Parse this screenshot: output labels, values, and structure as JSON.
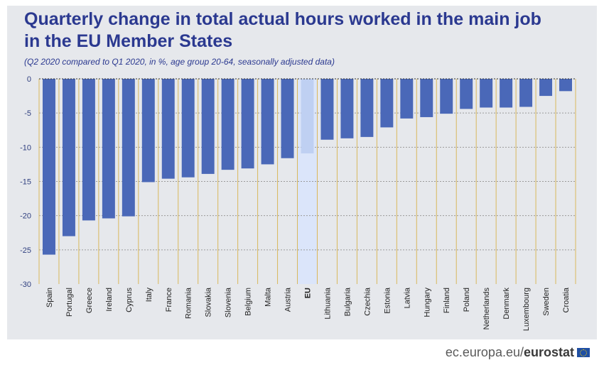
{
  "header": {
    "title_line1": "Quarterly change in total actual hours worked in the main job",
    "title_line2": "in the EU Member States",
    "subtitle": "(Q2 2020 compared to Q1 2020, in %, age group 20-64, seasonally adjusted data)"
  },
  "footer": {
    "site": "ec.europa.eu/",
    "brand": "eurostat"
  },
  "colors": {
    "bar": "#4a68b8",
    "eu_bar": "#bfd0f2",
    "eu_highlight": "#dbe5fa",
    "separator": "#d9b85c",
    "grid": "#9a9a9a",
    "axis_text": "#2f3f7f",
    "background": "#e6e8ec"
  },
  "chart_data": {
    "type": "bar",
    "highlight": "EU",
    "categories": [
      "Spain",
      "Portugal",
      "Greece",
      "Ireland",
      "Cyprus",
      "Italy",
      "France",
      "Romania",
      "Slovakia",
      "Slovenia",
      "Belgium",
      "Malta",
      "Austria",
      "EU",
      "Lithuania",
      "Bulgaria",
      "Czechia",
      "Estonia",
      "Latvia",
      "Hungary",
      "Finland",
      "Poland",
      "Netherlands",
      "Denmark",
      "Luxembourg",
      "Sweden",
      "Croatia"
    ],
    "values": [
      -25.7,
      -23.0,
      -20.7,
      -20.4,
      -20.1,
      -15.1,
      -14.6,
      -14.4,
      -13.9,
      -13.3,
      -13.1,
      -12.5,
      -11.6,
      -10.9,
      -8.9,
      -8.7,
      -8.5,
      -7.1,
      -5.8,
      -5.6,
      -5.1,
      -4.4,
      -4.2,
      -4.2,
      -4.1,
      -2.5,
      -1.8
    ],
    "yticks": [
      "0",
      "-5",
      "-10",
      "-15",
      "-20",
      "-25",
      "-30"
    ],
    "ylim": [
      -30,
      0
    ],
    "grid": true
  }
}
